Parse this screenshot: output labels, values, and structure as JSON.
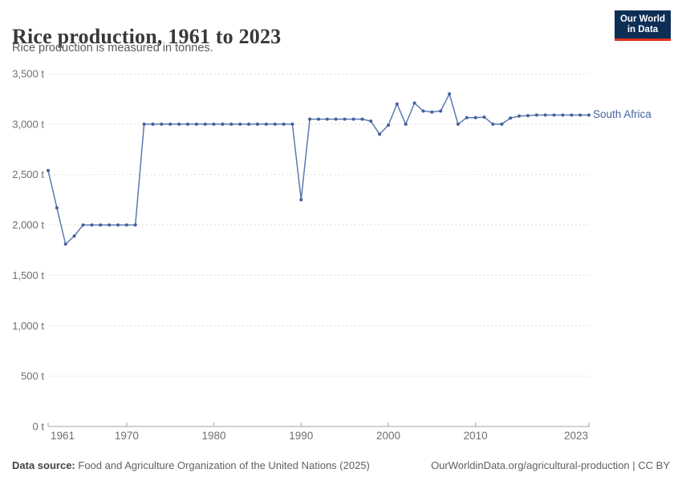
{
  "header": {
    "title": "Rice production, 1961 to 2023",
    "subtitle": "Rice production is measured in tonnes."
  },
  "logo": {
    "line1": "Our World",
    "line2": "in Data",
    "bg_color": "#0d2e55",
    "accent_color": "#e0301e"
  },
  "chart_data": {
    "type": "line",
    "title": "Rice production, 1961 to 2023",
    "unit": "t",
    "ylim": [
      0,
      3500
    ],
    "yticks": [
      0,
      500,
      1000,
      1500,
      2000,
      2500,
      3000,
      3500
    ],
    "ytick_suffix": " t",
    "xticks": [
      1961,
      1970,
      1980,
      1990,
      2000,
      2010,
      2023
    ],
    "grid": "horizontal-dashed",
    "legend_position": "end-of-line-label",
    "colors": {
      "line": "#5b79b0",
      "points": "#41609c",
      "label": "#44639f",
      "gridline": "#dcdcdc",
      "axis": "#a3a3a3",
      "tick_text": "#6e6e6e"
    },
    "series": [
      {
        "name": "South Africa",
        "x": [
          1961,
          1962,
          1963,
          1964,
          1965,
          1966,
          1967,
          1968,
          1969,
          1970,
          1971,
          1972,
          1973,
          1974,
          1975,
          1976,
          1977,
          1978,
          1979,
          1980,
          1981,
          1982,
          1983,
          1984,
          1985,
          1986,
          1987,
          1988,
          1989,
          1990,
          1991,
          1992,
          1993,
          1994,
          1995,
          1996,
          1997,
          1998,
          1999,
          2000,
          2001,
          2002,
          2003,
          2004,
          2005,
          2006,
          2007,
          2008,
          2009,
          2010,
          2011,
          2012,
          2013,
          2014,
          2015,
          2016,
          2017,
          2018,
          2019,
          2020,
          2021,
          2022,
          2023
        ],
        "values": [
          2540,
          2170,
          1810,
          1890,
          2000,
          2000,
          2000,
          2000,
          2000,
          2000,
          2000,
          3000,
          3000,
          3000,
          3000,
          3000,
          3000,
          3000,
          3000,
          3000,
          3000,
          3000,
          3000,
          3000,
          3000,
          3000,
          3000,
          3000,
          3000,
          2250,
          3050,
          3050,
          3050,
          3050,
          3050,
          3050,
          3050,
          3030,
          2900,
          2990,
          3200,
          3000,
          3210,
          3130,
          3120,
          3130,
          3300,
          3000,
          3065,
          3065,
          3070,
          3000,
          3000,
          3060,
          3080,
          3085,
          3090,
          3090,
          3090,
          3090,
          3090,
          3090,
          3090
        ]
      }
    ]
  },
  "footer": {
    "source_label": "Data source:",
    "source_text": "Food and Agriculture Organization of the United Nations (2025)",
    "link_text": "OurWorldinData.org/agricultural-production | CC BY"
  }
}
